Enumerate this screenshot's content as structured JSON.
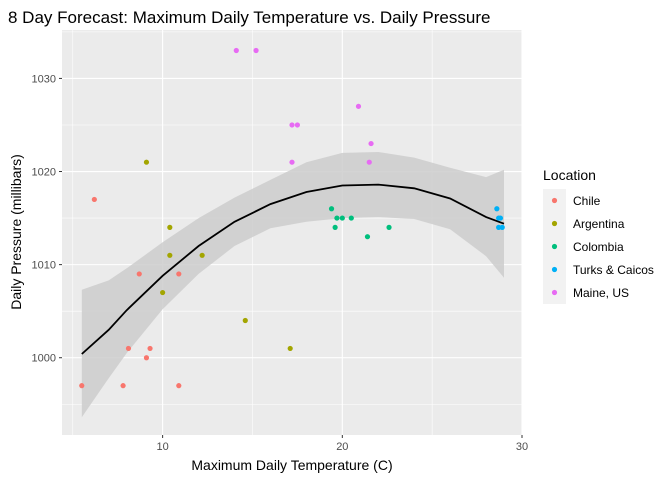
{
  "chart_data": {
    "type": "scatter",
    "title": "8 Day Forecast: Maximum Daily Temperature vs. Daily Pressure",
    "xlabel": "Maximum Daily Temperature (C)",
    "ylabel": "Daily Pressure (millibars)",
    "xlim": [
      4.4,
      30
    ],
    "ylim": [
      991.7,
      1035.2
    ],
    "x_ticks": [
      10,
      20,
      30
    ],
    "y_ticks": [
      1000,
      1010,
      1020,
      1030
    ],
    "grid": true,
    "legend": {
      "title": "Location",
      "placement": "right"
    },
    "series": [
      {
        "name": "Chile",
        "color": "#F8766D",
        "points": [
          [
            5.5,
            997
          ],
          [
            6.2,
            1017
          ],
          [
            7.8,
            997
          ],
          [
            8.1,
            1001
          ],
          [
            8.7,
            1009
          ],
          [
            9.1,
            1000
          ],
          [
            9.3,
            1001
          ],
          [
            10.9,
            997
          ],
          [
            10.9,
            1009
          ]
        ]
      },
      {
        "name": "Argentina",
        "color": "#A3A500",
        "points": [
          [
            9.1,
            1021
          ],
          [
            10.0,
            1007
          ],
          [
            10.4,
            1014
          ],
          [
            10.4,
            1011
          ],
          [
            12.2,
            1011
          ],
          [
            14.6,
            1004
          ],
          [
            17.1,
            1001
          ]
        ]
      },
      {
        "name": "Colombia",
        "color": "#00BF7D",
        "points": [
          [
            19.4,
            1016
          ],
          [
            19.6,
            1014
          ],
          [
            19.7,
            1015
          ],
          [
            20.0,
            1015
          ],
          [
            20.5,
            1015
          ],
          [
            21.4,
            1013
          ],
          [
            22.6,
            1014
          ]
        ]
      },
      {
        "name": "Turks & Caicos",
        "color": "#00B0F6",
        "points": [
          [
            28.6,
            1016
          ],
          [
            28.7,
            1015
          ],
          [
            28.7,
            1014
          ],
          [
            28.8,
            1015
          ],
          [
            28.9,
            1014
          ]
        ]
      },
      {
        "name": "Maine, US",
        "color": "#E76BF3",
        "points": [
          [
            14.1,
            1033
          ],
          [
            15.2,
            1033
          ],
          [
            17.2,
            1025
          ],
          [
            17.5,
            1025
          ],
          [
            17.2,
            1021
          ],
          [
            20.9,
            1027
          ],
          [
            21.6,
            1023
          ],
          [
            21.5,
            1021
          ]
        ]
      }
    ],
    "smooth": {
      "line_color": "#000000",
      "band_color": "#CCCCCC",
      "points": [
        [
          5.5,
          1000.4,
          993.6,
          1007.3
        ],
        [
          7,
          1003.0,
          997.8,
          1008.3
        ],
        [
          8,
          1005.1,
          1000.5,
          1009.6
        ],
        [
          10,
          1008.8,
          1005.2,
          1012.4
        ],
        [
          12,
          1012.0,
          1009.0,
          1015.0
        ],
        [
          14,
          1014.6,
          1012.0,
          1017.2
        ],
        [
          16,
          1016.5,
          1013.9,
          1019.1
        ],
        [
          18,
          1017.8,
          1014.6,
          1021.0
        ],
        [
          20,
          1018.5,
          1015.0,
          1022.0
        ],
        [
          22,
          1018.6,
          1015.1,
          1022.1
        ],
        [
          24,
          1018.2,
          1014.9,
          1021.5
        ],
        [
          26,
          1017.1,
          1013.8,
          1020.4
        ],
        [
          28,
          1015.1,
          1010.9,
          1019.4
        ],
        [
          29,
          1014.4,
          1008.6,
          1020.2
        ]
      ]
    }
  }
}
